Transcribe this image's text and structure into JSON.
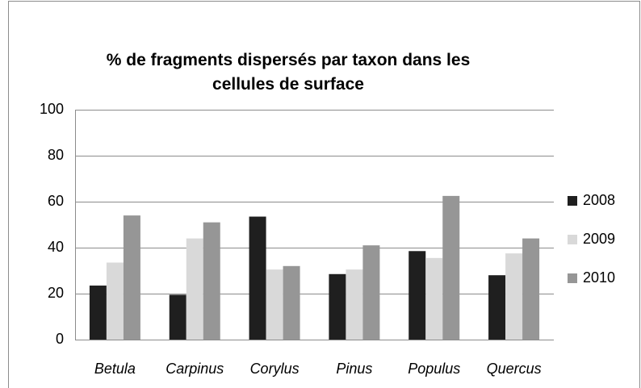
{
  "chart_data": {
    "type": "bar",
    "title": "% de fragments dispersés par taxon dans les cellules de surface",
    "categories": [
      "Betula",
      "Carpinus",
      "Corylus",
      "Pinus",
      "Populus",
      "Quercus"
    ],
    "series": [
      {
        "name": "2008",
        "color": "#1f1f1f",
        "values": [
          23.5,
          19.5,
          53.5,
          28.5,
          38.5,
          28
        ]
      },
      {
        "name": "2009",
        "color": "#d9d9d9",
        "values": [
          33.5,
          44,
          30.5,
          30.5,
          35.5,
          37.5
        ]
      },
      {
        "name": "2010",
        "color": "#969696",
        "values": [
          54,
          51,
          32,
          41,
          62.5,
          44
        ]
      }
    ],
    "ylim": [
      0,
      100
    ],
    "yticks": [
      0,
      20,
      40,
      60,
      80,
      100
    ],
    "grid": true,
    "legend": "right"
  }
}
